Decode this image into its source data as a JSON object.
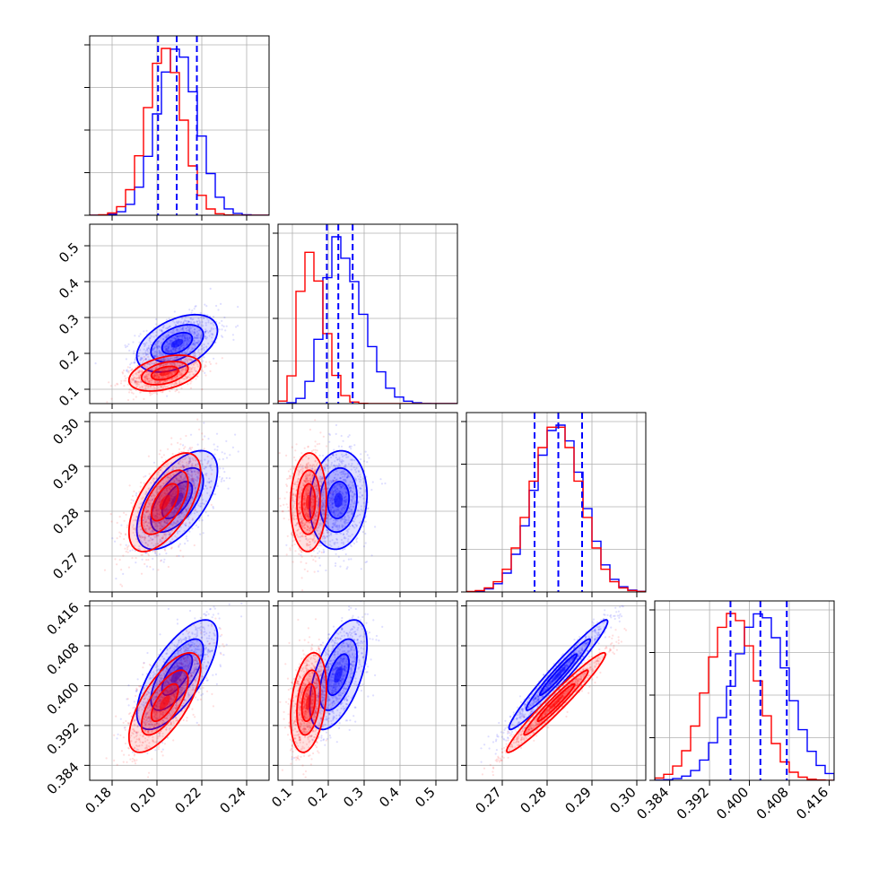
{
  "chart_data": {
    "type": "corner",
    "grid": true,
    "colors": {
      "blue": "#0000ff",
      "red": "#ff0000"
    },
    "series": [
      {
        "color": "#0000ff",
        "means": [
          0.209,
          0.228,
          0.2825,
          0.4022
        ],
        "sigmas": [
          0.009,
          0.04,
          0.0055,
          0.0055
        ],
        "correlations": {
          "0-1": 0.45,
          "0-2": 0.6,
          "0-3": 0.7,
          "1-2": 0.1,
          "1-3": 0.55,
          "2-3": 0.97
        },
        "quantiles": {
          "p0": [
            0.2005,
            0.2088,
            0.2178
          ],
          "p1": [
            0.196,
            0.228,
            0.268
          ],
          "p2": [
            0.2772,
            0.2825,
            0.2878
          ],
          "p3": [
            0.3962,
            0.4022,
            0.4075
          ]
        }
      },
      {
        "color": "#ff0000",
        "means": [
          0.2035,
          0.145,
          0.282,
          0.3966
        ],
        "sigmas": [
          0.008,
          0.025,
          0.0055,
          0.005
        ],
        "correlations": {
          "0-1": 0.4,
          "0-2": 0.6,
          "0-3": 0.7,
          "1-2": 0.05,
          "1-3": 0.3,
          "2-3": 0.97
        }
      }
    ],
    "params": [
      {
        "range": [
          0.17,
          0.25
        ],
        "ticks": [
          "0.18",
          "0.20",
          "0.22",
          "0.24"
        ],
        "tick_values": [
          0.18,
          0.2,
          0.22,
          0.24
        ]
      },
      {
        "range": [
          0.06,
          0.56
        ],
        "ticks": [
          "0.1",
          "0.2",
          "0.3",
          "0.4",
          "0.5"
        ],
        "tick_values": [
          0.1,
          0.2,
          0.3,
          0.4,
          0.5
        ]
      },
      {
        "range": [
          0.262,
          0.302
        ],
        "ticks": [
          "0.27",
          "0.28",
          "0.29",
          "0.30"
        ],
        "tick_values": [
          0.27,
          0.28,
          0.29,
          0.3
        ]
      },
      {
        "range": [
          0.381,
          0.417
        ],
        "ticks": [
          "0.384",
          "0.392",
          "0.400",
          "0.408",
          "0.416"
        ],
        "tick_values": [
          0.384,
          0.392,
          0.4,
          0.408,
          0.416
        ]
      }
    ]
  }
}
